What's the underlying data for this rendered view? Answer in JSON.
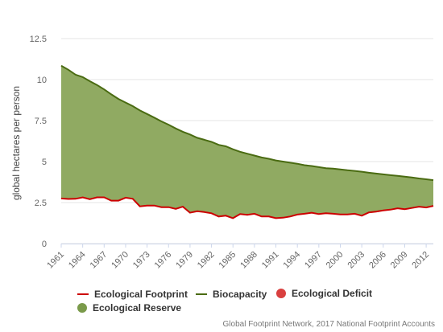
{
  "chart_data": {
    "type": "area",
    "ylabel": "global hectares per person",
    "ylim": [
      0,
      12.5
    ],
    "yticks": [
      "0",
      "2.5",
      "5",
      "7.5",
      "10",
      "12.5"
    ],
    "xlim": [
      1961,
      2013
    ],
    "xticks": [
      "1961",
      "1964",
      "1967",
      "1970",
      "1973",
      "1976",
      "1979",
      "1982",
      "1985",
      "1988",
      "1991",
      "1994",
      "1997",
      "2000",
      "2003",
      "2006",
      "2009",
      "2012"
    ],
    "grid": true,
    "years": [
      1961,
      1962,
      1963,
      1964,
      1965,
      1966,
      1967,
      1968,
      1969,
      1970,
      1971,
      1972,
      1973,
      1974,
      1975,
      1976,
      1977,
      1978,
      1979,
      1980,
      1981,
      1982,
      1983,
      1984,
      1985,
      1986,
      1987,
      1988,
      1989,
      1990,
      1991,
      1992,
      1993,
      1994,
      1995,
      1996,
      1997,
      1998,
      1999,
      2000,
      2001,
      2002,
      2003,
      2004,
      2005,
      2006,
      2007,
      2008,
      2009,
      2010,
      2011,
      2012,
      2013
    ],
    "series": [
      {
        "name": "Ecological Footprint",
        "color": "#cc0000",
        "values": [
          2.75,
          2.72,
          2.73,
          2.82,
          2.7,
          2.82,
          2.82,
          2.62,
          2.62,
          2.8,
          2.73,
          2.27,
          2.32,
          2.32,
          2.22,
          2.22,
          2.12,
          2.25,
          1.88,
          1.97,
          1.92,
          1.85,
          1.65,
          1.7,
          1.55,
          1.8,
          1.75,
          1.82,
          1.65,
          1.65,
          1.55,
          1.58,
          1.65,
          1.77,
          1.82,
          1.88,
          1.8,
          1.85,
          1.82,
          1.78,
          1.78,
          1.82,
          1.7,
          1.9,
          1.95,
          2.02,
          2.07,
          2.15,
          2.1,
          2.17,
          2.25,
          2.2,
          2.3
        ]
      },
      {
        "name": "Biocapacity",
        "color": "#4a6b12",
        "values": [
          10.85,
          10.6,
          10.3,
          10.15,
          9.9,
          9.67,
          9.4,
          9.1,
          8.82,
          8.6,
          8.38,
          8.12,
          7.9,
          7.68,
          7.45,
          7.25,
          7.02,
          6.82,
          6.65,
          6.45,
          6.33,
          6.2,
          6.02,
          5.93,
          5.75,
          5.6,
          5.48,
          5.37,
          5.25,
          5.17,
          5.07,
          5.0,
          4.93,
          4.87,
          4.78,
          4.73,
          4.66,
          4.6,
          4.57,
          4.52,
          4.47,
          4.43,
          4.38,
          4.32,
          4.27,
          4.22,
          4.17,
          4.13,
          4.08,
          4.03,
          3.97,
          3.92,
          3.87
        ]
      }
    ],
    "legend": [
      {
        "label": "Ecological Footprint",
        "color": "#cc0000",
        "shape": "line"
      },
      {
        "label": "Biocapacity",
        "color": "#4a6b12",
        "shape": "line"
      },
      {
        "label": "Ecological Deficit",
        "color": "#d9403f",
        "shape": "dot"
      },
      {
        "label": "Ecological Reserve",
        "color": "#7a9a4a",
        "shape": "dot"
      }
    ],
    "reserve_fill": "#8aa55a",
    "credits": "Global Footprint Network, 2017 National Footprint Accounts"
  }
}
